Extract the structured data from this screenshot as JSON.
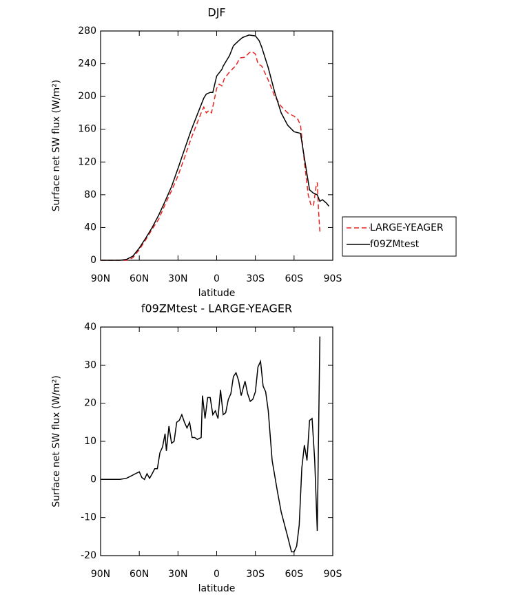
{
  "chart_data": [
    {
      "type": "line",
      "title": "DJF",
      "xlabel": "latitude",
      "ylabel": "Surface net SW flux (W/m²)",
      "xlim": [
        90,
        -90
      ],
      "xticks": [
        {
          "value": 90,
          "label": "90N"
        },
        {
          "value": 60,
          "label": "60N"
        },
        {
          "value": 30,
          "label": "30N"
        },
        0,
        {
          "value": -30,
          "label": "30S"
        },
        {
          "value": -60,
          "label": "60S"
        },
        {
          "value": -90,
          "label": "90S"
        }
      ],
      "ylim": [
        0,
        280
      ],
      "yticks": [
        0,
        40,
        80,
        120,
        160,
        200,
        240,
        280
      ],
      "legend": "right",
      "series": [
        {
          "name": "LARGE-YEAGER",
          "color": "#e8231f",
          "dash": true,
          "x": [
            90,
            75,
            70,
            65,
            60,
            55,
            50,
            45,
            40,
            35,
            30,
            25,
            20,
            15,
            12,
            10,
            8,
            6,
            4,
            2,
            0,
            -2,
            -4,
            -6,
            -10,
            -15,
            -18,
            -22,
            -25,
            -27,
            -30,
            -32,
            -35,
            -40,
            -45,
            -50,
            -55,
            -60,
            -63,
            -65,
            -68,
            -71,
            -73,
            -75,
            -77,
            -78,
            -79,
            -80
          ],
          "values": [
            0,
            0,
            0,
            3,
            13,
            25,
            38,
            50,
            68,
            85,
            103,
            125,
            148,
            168,
            180,
            187,
            180,
            183,
            180,
            195,
            210,
            215,
            213,
            222,
            230,
            238,
            247,
            248,
            253,
            255,
            252,
            240,
            237,
            220,
            200,
            188,
            180,
            176,
            172,
            165,
            120,
            80,
            68,
            66,
            90,
            95,
            60,
            35
          ]
        },
        {
          "name": "f09ZMtest",
          "color": "#000000",
          "dash": false,
          "x": [
            90,
            75,
            70,
            65,
            60,
            55,
            50,
            45,
            40,
            35,
            30,
            25,
            20,
            15,
            10,
            8,
            5,
            3,
            0,
            -4,
            -5,
            -10,
            -13,
            -17,
            -20,
            -25,
            -30,
            -33,
            -35,
            -40,
            -45,
            -50,
            -55,
            -60,
            -65,
            -67,
            -70,
            -72,
            -75,
            -78,
            -80,
            -82,
            -85,
            -87
          ],
          "values": [
            0,
            0,
            1,
            5,
            15,
            27,
            40,
            55,
            72,
            90,
            112,
            135,
            158,
            178,
            198,
            203,
            205,
            205,
            225,
            233,
            237,
            250,
            262,
            268,
            272,
            275,
            274,
            268,
            260,
            235,
            205,
            180,
            165,
            157,
            155,
            135,
            105,
            86,
            82,
            80,
            72,
            74,
            70,
            66
          ]
        }
      ]
    },
    {
      "type": "line",
      "title": "f09ZMtest - LARGE-YEAGER",
      "xlabel": "latitude",
      "ylabel": "Surface net SW flux (W/m²)",
      "xlim": [
        90,
        -90
      ],
      "xticks": [
        {
          "value": 90,
          "label": "90N"
        },
        {
          "value": 60,
          "label": "60N"
        },
        {
          "value": 30,
          "label": "30N"
        },
        0,
        {
          "value": -30,
          "label": "30S"
        },
        {
          "value": -60,
          "label": "60S"
        },
        {
          "value": -90,
          "label": "90S"
        }
      ],
      "ylim": [
        -20,
        40
      ],
      "yticks": [
        -20,
        -10,
        0,
        10,
        20,
        30,
        40
      ],
      "series": [
        {
          "color": "#000000",
          "dash": false,
          "x": [
            90,
            75,
            70,
            67,
            63,
            60,
            58,
            56,
            54,
            52,
            50,
            48,
            46,
            44,
            42,
            40,
            39,
            37,
            35,
            33,
            31,
            29,
            27,
            25,
            23,
            21,
            19,
            17,
            15,
            12,
            11,
            9,
            7,
            5,
            3,
            1,
            -1,
            -3,
            -5,
            -7,
            -9,
            -11,
            -13,
            -15,
            -17,
            -19,
            -22,
            -24,
            -26,
            -28,
            -30,
            -32,
            -34,
            -36,
            -38,
            -40,
            -43,
            -47,
            -50,
            -55,
            -58,
            -60,
            -62,
            -64,
            -66,
            -68,
            -70,
            -72,
            -74,
            -76,
            -78,
            -80
          ],
          "values": [
            0,
            0,
            0.3,
            0.8,
            1.5,
            2,
            0.5,
            0,
            1.5,
            0.3,
            1.5,
            2.8,
            2.8,
            7,
            8.5,
            12,
            7.5,
            14,
            9.5,
            10,
            15,
            15.5,
            17,
            15,
            13.5,
            15,
            11,
            11,
            10.5,
            11,
            22,
            16,
            21.5,
            21.5,
            17,
            18,
            16,
            23.5,
            17,
            17.5,
            21,
            22.5,
            27,
            28,
            26,
            22,
            25.8,
            22.5,
            20.5,
            21,
            23,
            29.5,
            31,
            24.5,
            23,
            18,
            5,
            -3,
            -8.5,
            -15,
            -19,
            -19,
            -17.5,
            -12,
            3,
            9,
            5,
            15.5,
            16,
            5,
            -13.5,
            37.5
          ]
        }
      ]
    }
  ]
}
